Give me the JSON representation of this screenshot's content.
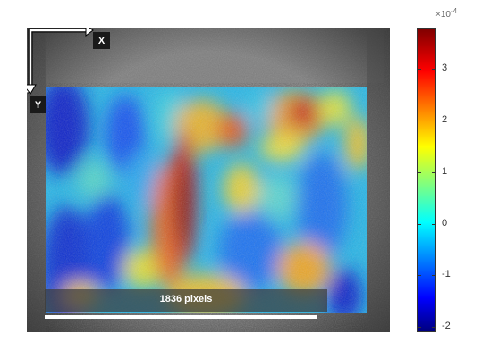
{
  "axes_labels": {
    "x": "X",
    "y": "Y"
  },
  "scale_bar": {
    "label": "1836 pixels"
  },
  "colorbar": {
    "multiplier_prefix": "×10",
    "multiplier_exponent": "-4",
    "ticks": [
      "3",
      "2",
      "1",
      "0",
      "-1",
      "-2"
    ],
    "range": [
      -2.1,
      3.8
    ],
    "colormap": "jet"
  },
  "colors": {
    "colormap_low": "#00007f",
    "colormap_high": "#7f0000",
    "overlay_label_bg": "#3c3c3c"
  }
}
